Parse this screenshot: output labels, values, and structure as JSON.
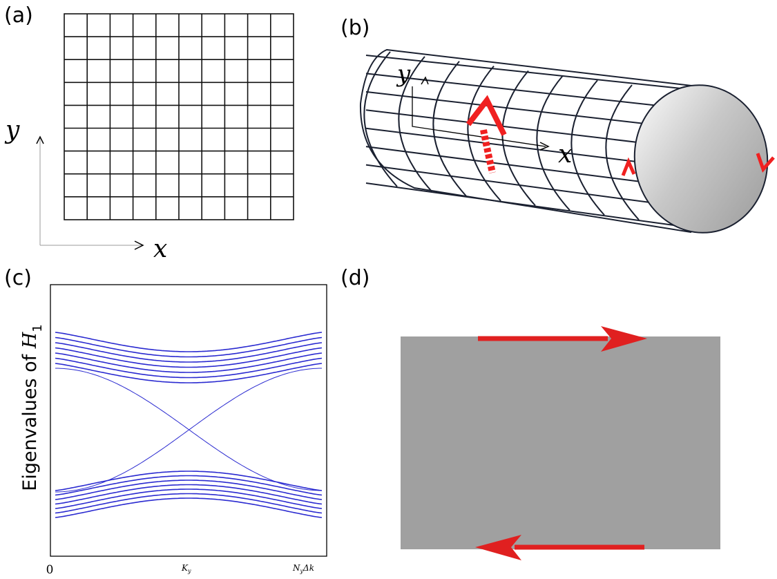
{
  "panels": {
    "a": {
      "label": "(a)",
      "x_axis": "x",
      "y_axis": "y"
    },
    "b": {
      "label": "(b)",
      "x_axis": "x",
      "y_axis": "y"
    },
    "c": {
      "label": "(c)",
      "ylabel": {
        "text": "Eigenvalues of ",
        "var": "H",
        "sub": "1"
      },
      "xticks": [
        {
          "text": "0"
        },
        {
          "var": "K",
          "sub": "y"
        },
        {
          "var": "N",
          "sub": "y",
          "rest": "Δk"
        }
      ]
    },
    "d": {
      "label": "(d)"
    }
  }
}
